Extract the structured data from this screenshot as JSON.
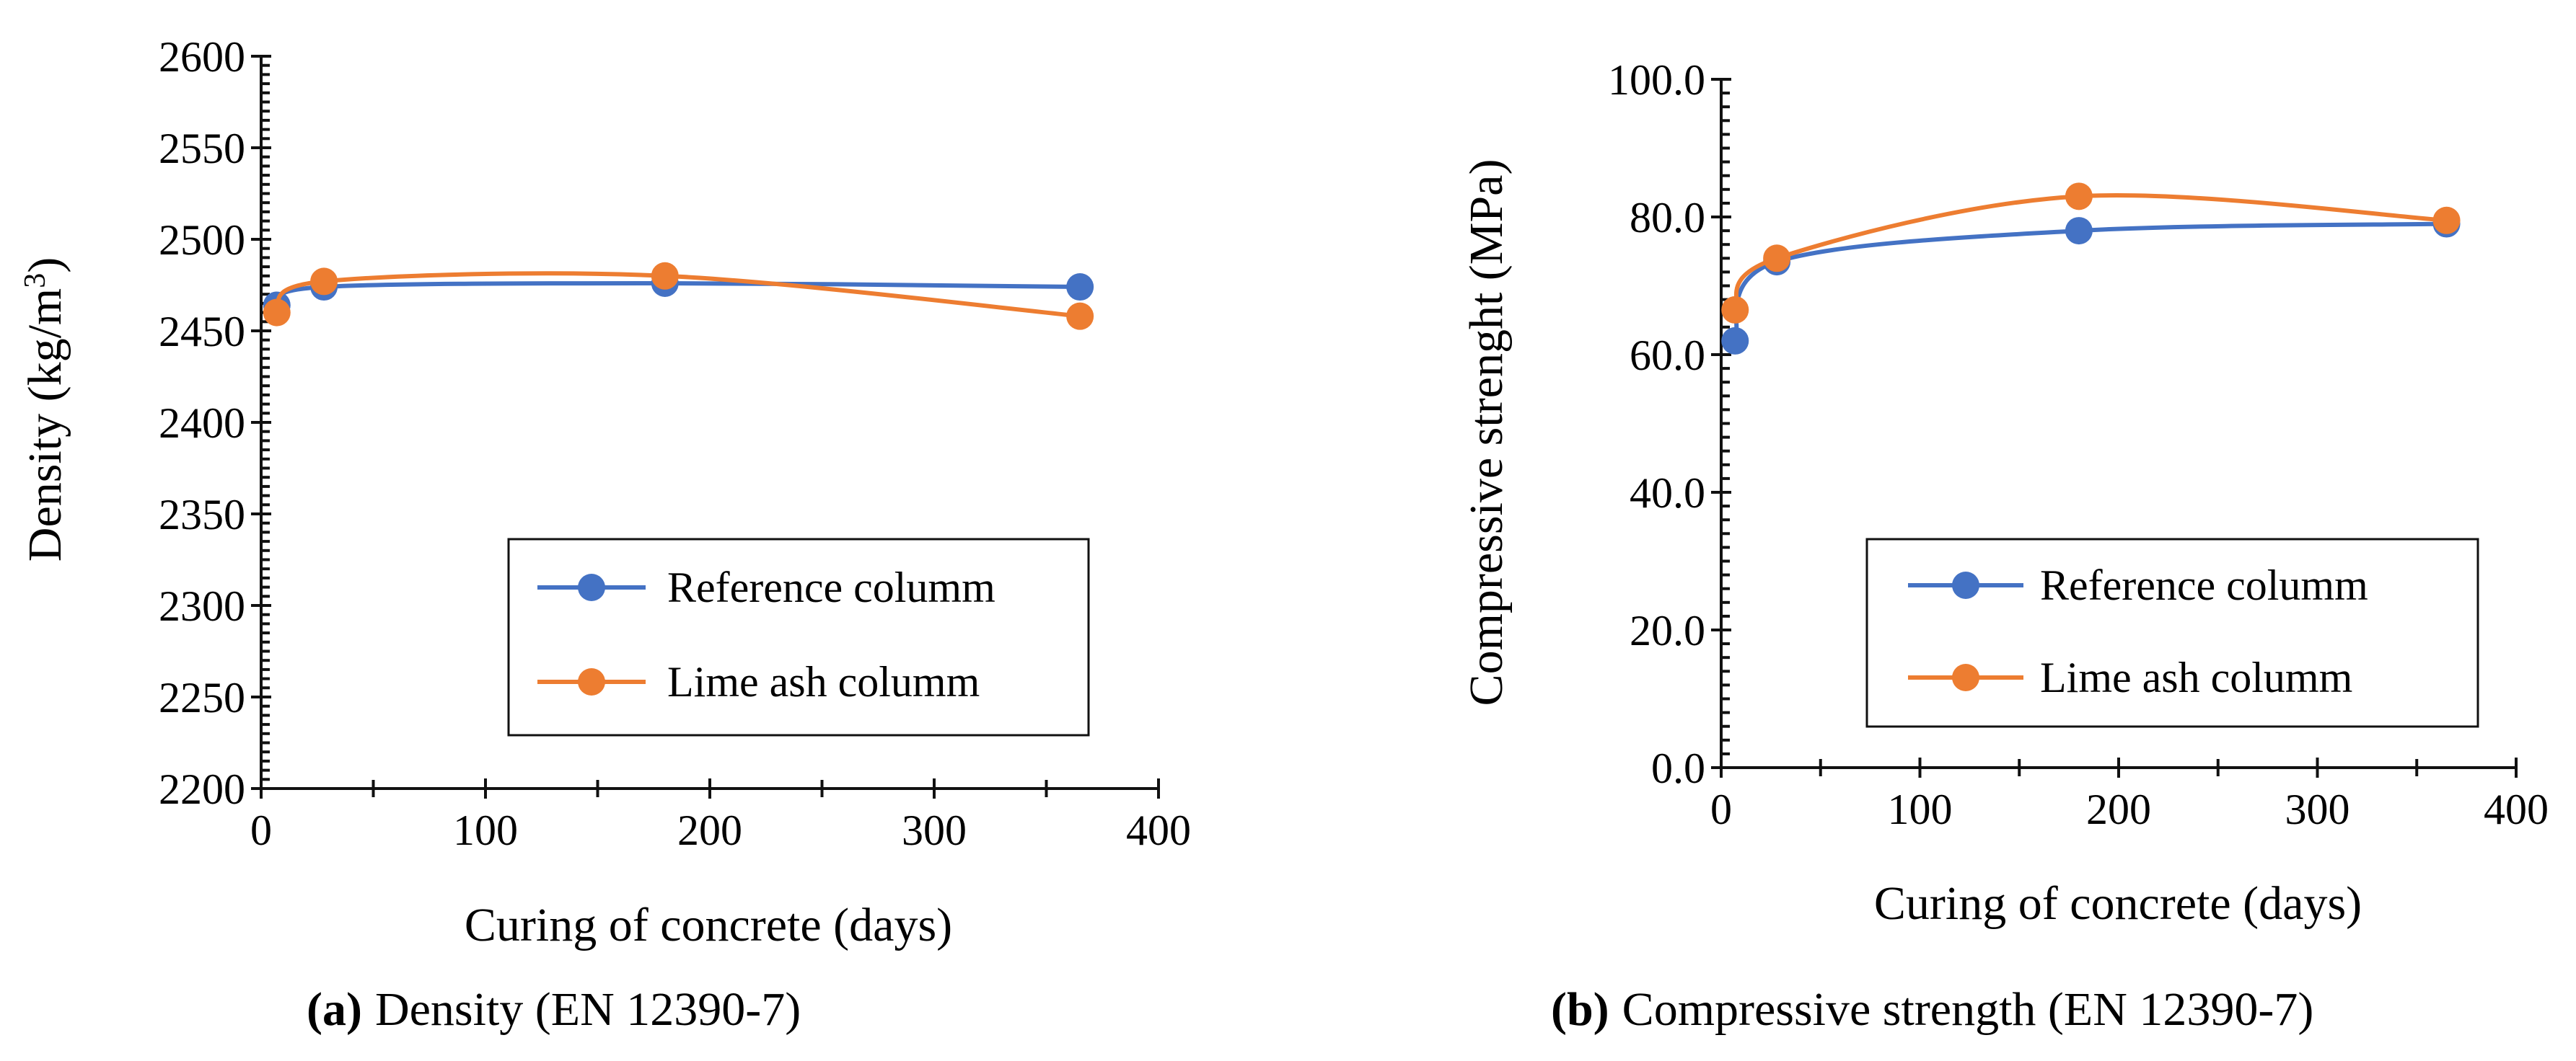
{
  "colors": {
    "reference": "#4472C4",
    "lime": "#ED7D31",
    "axis": "#111111"
  },
  "chart_data": [
    {
      "type": "line",
      "caption_letter": "(a)",
      "caption_text": "Density (EN 12390-7)",
      "xlabel": "Curing of concrete (days)",
      "ylabel_main": "Density (kg/m",
      "ylabel_sup": "3",
      "ylabel_end": ")",
      "xlim": [
        0,
        400
      ],
      "ylim": [
        2200,
        2600
      ],
      "xticks": [
        0,
        100,
        200,
        300,
        400
      ],
      "xtick_labels": [
        "0",
        "100",
        "200",
        "300",
        "400"
      ],
      "yticks": [
        2200,
        2250,
        2300,
        2350,
        2400,
        2450,
        2500,
        2550,
        2600
      ],
      "ytick_labels": [
        "2200",
        "2250",
        "2300",
        "2350",
        "2400",
        "2450",
        "2500",
        "2550",
        "2600"
      ],
      "legend_position": "bottom-right",
      "series": [
        {
          "name": "Reference columm",
          "color": "#4472C4",
          "x": [
            7,
            28,
            180,
            365
          ],
          "y": [
            2464,
            2474,
            2476,
            2474
          ]
        },
        {
          "name": "Lime ash columm",
          "color": "#ED7D31",
          "x": [
            7,
            28,
            180,
            365
          ],
          "y": [
            2460,
            2477,
            2480,
            2458
          ]
        }
      ]
    },
    {
      "type": "line",
      "caption_letter": "(b)",
      "caption_text": "Compressive strength (EN 12390-7)",
      "xlabel": "Curing of concrete (days)",
      "ylabel": "Compressive strenght  (MPa)",
      "xlim": [
        0,
        400
      ],
      "ylim": [
        0,
        100
      ],
      "xticks": [
        0,
        100,
        200,
        300,
        400
      ],
      "xtick_labels": [
        "0",
        "100",
        "200",
        "300",
        "400"
      ],
      "yticks": [
        0,
        20,
        40,
        60,
        80,
        100
      ],
      "ytick_labels": [
        "0.0",
        "20.0",
        "40.0",
        "60.0",
        "80.0",
        "100.0"
      ],
      "legend_position": "bottom-right",
      "series": [
        {
          "name": "Reference columm",
          "color": "#4472C4",
          "x": [
            7,
            28,
            180,
            365
          ],
          "y": [
            62,
            73.5,
            78,
            79
          ]
        },
        {
          "name": "Lime ash columm",
          "color": "#ED7D31",
          "x": [
            7,
            28,
            180,
            365
          ],
          "y": [
            66.5,
            74,
            83,
            79.5
          ]
        }
      ]
    }
  ]
}
